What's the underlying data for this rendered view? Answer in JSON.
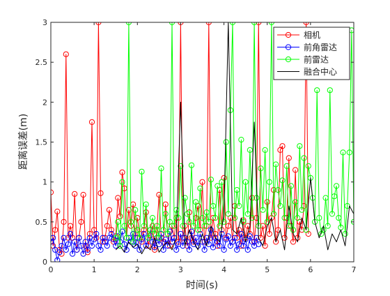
{
  "chart_data": {
    "type": "line",
    "xlabel": "时间(s)",
    "ylabel": "距离误差(m)",
    "xlim": [
      0,
      7
    ],
    "ylim": [
      0,
      3
    ],
    "xticks": [
      "0",
      "1",
      "2",
      "3",
      "4",
      "5",
      "6",
      "7"
    ],
    "yticks": [
      "0",
      "0.5",
      "1",
      "1.5",
      "2",
      "2.5",
      "3"
    ],
    "grid": false,
    "legend_position": "top-right",
    "series": [
      {
        "name": "相机",
        "color": "#ff0000",
        "marker": "circle",
        "x": [
          0.0,
          0.05,
          0.1,
          0.15,
          0.2,
          0.25,
          0.3,
          0.35,
          0.4,
          0.45,
          0.5,
          0.55,
          0.6,
          0.65,
          0.7,
          0.75,
          0.8,
          0.85,
          0.9,
          0.95,
          1.0,
          1.05,
          1.1,
          1.15,
          1.2,
          1.25,
          1.3,
          1.35,
          1.4,
          1.45,
          1.5,
          1.55,
          1.6,
          1.65,
          1.7,
          1.75,
          1.8,
          1.85,
          1.9,
          1.95,
          2.0,
          2.05,
          2.1,
          2.15,
          2.2,
          2.25,
          2.3,
          2.35,
          2.4,
          2.45,
          2.5,
          2.55,
          2.6,
          2.65,
          2.7,
          2.75,
          2.8,
          2.85,
          2.9,
          2.95,
          3.0,
          3.05,
          3.1,
          3.15,
          3.2,
          3.25,
          3.3,
          3.35,
          3.4,
          3.45,
          3.5,
          3.55,
          3.6,
          3.65,
          3.7,
          3.75,
          3.8,
          3.85,
          3.9,
          3.95,
          4.0,
          4.05,
          4.1,
          4.15,
          4.2,
          4.25,
          4.3,
          4.35,
          4.4,
          4.45,
          4.5,
          4.55,
          4.6,
          4.65,
          4.7,
          4.75,
          4.8,
          4.85,
          4.9,
          4.95,
          5.0,
          5.05,
          5.1,
          5.15,
          5.2,
          5.25,
          5.3,
          5.35,
          5.4,
          5.45,
          5.5,
          5.55,
          5.6,
          5.65,
          5.7,
          5.75,
          5.8,
          5.85,
          5.9,
          5.95
        ],
        "y": [
          0.87,
          0.2,
          0.4,
          0.63,
          0.15,
          0.1,
          0.5,
          2.6,
          0.3,
          0.45,
          0.3,
          0.85,
          0.15,
          0.3,
          0.5,
          0.84,
          0.2,
          0.12,
          0.35,
          1.75,
          0.4,
          0.3,
          3.0,
          0.86,
          0.25,
          0.3,
          0.45,
          0.65,
          0.4,
          0.25,
          0.32,
          0.8,
          0.57,
          1.12,
          0.92,
          0.3,
          0.65,
          0.45,
          0.72,
          0.3,
          0.55,
          0.35,
          0.25,
          0.4,
          0.62,
          0.2,
          0.33,
          0.45,
          0.15,
          0.4,
          0.84,
          0.3,
          0.25,
          0.72,
          0.35,
          0.2,
          0.45,
          0.3,
          0.55,
          0.25,
          3.0,
          0.3,
          0.45,
          0.2,
          0.62,
          0.3,
          0.25,
          0.55,
          0.7,
          0.4,
          1.0,
          0.25,
          0.45,
          3.0,
          0.3,
          0.55,
          0.35,
          0.2,
          0.9,
          0.4,
          1.05,
          0.3,
          0.45,
          0.55,
          0.25,
          0.7,
          0.3,
          0.4,
          0.2,
          0.52,
          0.3,
          0.45,
          0.35,
          0.8,
          0.25,
          0.55,
          3.0,
          0.3,
          0.45,
          0.2,
          0.75,
          0.35,
          0.55,
          0.9,
          0.25,
          0.4,
          1.4,
          1.45,
          0.3,
          0.55,
          1.3,
          0.45,
          0.25,
          1.15,
          0.3,
          0.5,
          0.4,
          0.7,
          3.0,
          0.35
        ]
      },
      {
        "name": "前角雷达",
        "color": "#0000ff",
        "marker": "circle",
        "x": [
          0.0,
          0.05,
          0.1,
          0.15,
          0.2,
          0.25,
          0.3,
          0.35,
          0.4,
          0.45,
          0.5,
          0.55,
          0.6,
          0.65,
          0.7,
          0.75,
          0.8,
          0.85,
          0.9,
          0.95,
          1.0,
          1.05,
          1.1,
          1.15,
          1.2,
          1.25,
          1.3,
          1.35,
          1.4,
          1.45,
          1.5,
          1.55,
          1.6,
          1.65,
          1.7,
          1.75,
          1.8,
          1.85,
          1.9,
          1.95,
          2.0,
          2.05,
          2.1,
          2.15,
          2.2,
          2.25,
          2.3,
          2.35,
          2.4,
          2.45,
          2.5,
          2.55,
          2.6,
          2.65,
          2.7,
          2.75,
          2.8,
          2.85,
          2.9,
          2.95,
          3.0,
          3.05,
          3.1,
          3.15,
          3.2,
          3.25,
          3.3,
          3.35,
          3.4,
          3.45,
          3.5,
          3.55,
          3.6,
          3.65,
          3.7,
          3.75,
          3.8,
          3.85,
          3.9,
          3.95,
          4.0,
          4.05,
          4.1,
          4.15,
          4.2,
          4.25,
          4.3,
          4.35,
          4.4,
          4.45,
          4.5,
          4.55,
          4.6,
          4.65,
          4.7,
          4.75,
          4.8
        ],
        "y": [
          0.25,
          0.3,
          0.15,
          0.02,
          0.12,
          0.2,
          0.3,
          0.15,
          0.22,
          0.35,
          0.1,
          0.25,
          0.15,
          0.3,
          0.2,
          0.1,
          0.25,
          0.15,
          0.3,
          0.2,
          0.28,
          0.35,
          0.2,
          0.15,
          0.3,
          0.25,
          0.2,
          0.3,
          0.35,
          0.28,
          0.2,
          0.32,
          0.25,
          0.38,
          0.22,
          0.15,
          0.3,
          0.25,
          0.35,
          0.2,
          0.3,
          0.15,
          0.28,
          0.35,
          0.2,
          0.3,
          0.4,
          0.25,
          0.18,
          0.3,
          0.22,
          0.35,
          0.15,
          0.28,
          0.2,
          0.38,
          0.25,
          0.3,
          0.15,
          0.22,
          0.35,
          0.2,
          0.3,
          0.25,
          0.15,
          0.38,
          0.22,
          0.3,
          0.2,
          0.35,
          0.25,
          0.15,
          0.3,
          0.22,
          0.4,
          0.18,
          0.3,
          0.25,
          0.2,
          0.35,
          0.15,
          0.28,
          0.32,
          0.2,
          0.25,
          0.3,
          0.15,
          0.22,
          0.35,
          0.2,
          0.28,
          0.15,
          0.32,
          0.25,
          0.2,
          0.3,
          0.22
        ]
      },
      {
        "name": "前雷达",
        "color": "#00ff00",
        "marker": "circle",
        "x": [
          1.5,
          1.55,
          1.6,
          1.65,
          1.7,
          1.75,
          1.8,
          1.85,
          1.9,
          1.95,
          2.0,
          2.05,
          2.1,
          2.15,
          2.2,
          2.25,
          2.3,
          2.35,
          2.4,
          2.45,
          2.5,
          2.55,
          2.6,
          2.65,
          2.7,
          2.75,
          2.8,
          2.85,
          2.9,
          2.95,
          3.0,
          3.05,
          3.1,
          3.15,
          3.2,
          3.25,
          3.3,
          3.35,
          3.4,
          3.45,
          3.5,
          3.55,
          3.6,
          3.65,
          3.7,
          3.75,
          3.8,
          3.85,
          3.9,
          3.95,
          4.0,
          4.05,
          4.1,
          4.15,
          4.2,
          4.25,
          4.3,
          4.35,
          4.4,
          4.45,
          4.5,
          4.55,
          4.6,
          4.65,
          4.7,
          4.75,
          4.8,
          4.85,
          4.9,
          4.95,
          5.0,
          5.05,
          5.1,
          5.15,
          5.2,
          5.25,
          5.3,
          5.35,
          5.4,
          5.45,
          5.5,
          5.55,
          5.6,
          5.65,
          5.7,
          5.75,
          5.8,
          5.85,
          5.9,
          5.95,
          6.0,
          6.05,
          6.1,
          6.15,
          6.2,
          6.25,
          6.3,
          6.35,
          6.4,
          6.45,
          6.5,
          6.55,
          6.6,
          6.65,
          6.7,
          6.75,
          6.8,
          6.85,
          6.9,
          6.95,
          7.0
        ],
        "y": [
          0.3,
          0.5,
          0.2,
          1.0,
          0.45,
          0.3,
          3.0,
          0.5,
          0.25,
          0.65,
          0.4,
          0.3,
          1.13,
          0.45,
          0.72,
          0.3,
          0.4,
          0.55,
          0.35,
          0.45,
          0.3,
          1.17,
          0.4,
          0.6,
          0.35,
          0.5,
          3.0,
          0.45,
          0.65,
          0.55,
          1.2,
          0.45,
          0.8,
          0.6,
          0.5,
          1.21,
          0.45,
          0.75,
          0.4,
          0.92,
          0.55,
          0.45,
          0.62,
          0.5,
          1.03,
          0.7,
          0.55,
          0.95,
          0.45,
          1.0,
          0.5,
          1.5,
          0.6,
          1.9,
          3.0,
          0.55,
          0.9,
          0.7,
          1.53,
          0.5,
          1.0,
          0.6,
          1.4,
          0.55,
          3.0,
          0.8,
          0.45,
          1.17,
          0.65,
          1.4,
          0.5,
          1.0,
          3.0,
          0.6,
          1.22,
          0.9,
          0.7,
          1.02,
          0.55,
          1.2,
          0.45,
          0.95,
          0.4,
          0.75,
          0.55,
          1.45,
          0.65,
          1.3,
          0.4,
          1.2,
          1.05,
          0.8,
          0.5,
          2.15,
          0.55,
          0.35,
          0.4,
          0.8,
          0.45,
          2.15,
          0.6,
          0.82,
          0.95,
          0.55,
          0.43,
          1.37,
          0.35,
          0.7,
          1.37,
          2.9,
          0.5
        ]
      },
      {
        "name": "融合中心",
        "color": "#000000",
        "marker": "none",
        "x": [
          1.5,
          1.6,
          1.7,
          1.8,
          1.9,
          2.0,
          2.1,
          2.2,
          2.3,
          2.4,
          2.5,
          2.6,
          2.7,
          2.8,
          2.9,
          3.0,
          3.1,
          3.2,
          3.3,
          3.4,
          3.5,
          3.6,
          3.7,
          3.8,
          3.9,
          4.0,
          4.1,
          4.2,
          4.3,
          4.4,
          4.5,
          4.6,
          4.7,
          4.8,
          4.9,
          5.0,
          5.1,
          5.2,
          5.3,
          5.4,
          5.5,
          5.6,
          5.7,
          5.8,
          5.9,
          6.0,
          6.1,
          6.2,
          6.3,
          6.4,
          6.5,
          6.6,
          6.7,
          6.8,
          6.9,
          7.0
        ],
        "y": [
          0.15,
          0.2,
          0.12,
          0.25,
          0.18,
          0.22,
          0.1,
          0.2,
          0.15,
          0.3,
          0.12,
          0.2,
          0.25,
          0.15,
          0.3,
          2.0,
          0.2,
          0.4,
          0.25,
          0.15,
          0.35,
          0.2,
          0.45,
          0.3,
          0.25,
          0.6,
          3.0,
          0.4,
          0.35,
          0.55,
          0.25,
          0.45,
          1.75,
          0.3,
          0.2,
          0.45,
          0.55,
          0.25,
          0.4,
          0.15,
          0.7,
          0.35,
          0.25,
          0.55,
          0.4,
          1.05,
          0.5,
          0.3,
          0.45,
          0.15,
          0.35,
          0.25,
          0.4,
          0.2,
          0.7,
          0.6
        ]
      }
    ]
  }
}
